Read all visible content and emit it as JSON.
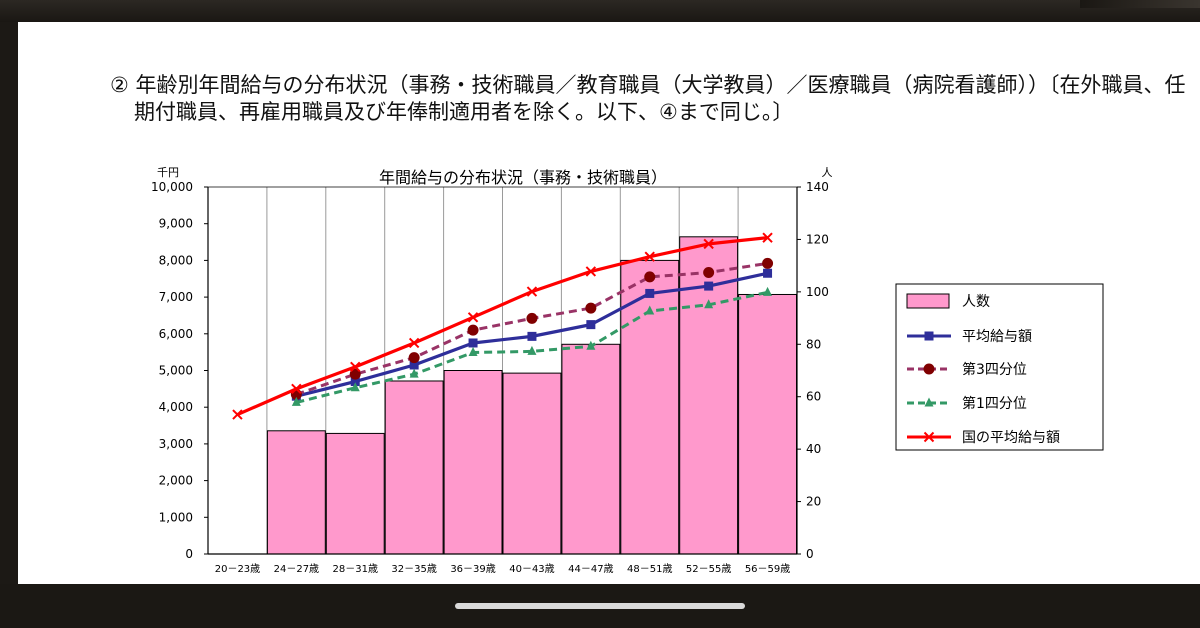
{
  "heading": "② 年齢別年間給与の分布状況（事務・技術職員／教育職員（大学教員）／医療職員（病院看護師））〔在外職員、任期付職員、再雇用職員及び年俸制適用者を除く。以下、④まで同じ。〕",
  "colors": {
    "bar_fill": "#ff99cc",
    "bar_stroke": "#000000",
    "avg_salary": "#2e2e9a",
    "q3": "#993366",
    "q3_marker": "#800000",
    "q1": "#339966",
    "national_avg": "#ff0000"
  },
  "chart_data": {
    "type": "bar+line",
    "title": "年間給与の分布状況（事務・技術職員）",
    "y_left_unit": "千円",
    "y_right_unit": "人",
    "y_left_lim": [
      0,
      10000
    ],
    "y_right_lim": [
      0,
      140
    ],
    "y_left_ticks": [
      "0",
      "1,000",
      "2,000",
      "3,000",
      "4,000",
      "5,000",
      "6,000",
      "7,000",
      "8,000",
      "9,000",
      "10,000"
    ],
    "y_right_ticks": [
      "0",
      "20",
      "40",
      "60",
      "80",
      "100",
      "120",
      "140"
    ],
    "categories": [
      "20－23歳",
      "24－27歳",
      "28－31歳",
      "32－35歳",
      "36－39歳",
      "40－43歳",
      "44－47歳",
      "48－51歳",
      "52－55歳",
      "56－59歳"
    ],
    "grid": "vertical",
    "legend_position": "right",
    "series": [
      {
        "name": "人数",
        "type": "bar",
        "axis": "right",
        "values": [
          null,
          47,
          46,
          66,
          70,
          69,
          80,
          112,
          121,
          99
        ]
      },
      {
        "name": "平均給与額",
        "type": "line",
        "axis": "left",
        "marker": "square",
        "dash": "solid",
        "values": [
          null,
          4300,
          4700,
          5150,
          5750,
          5930,
          6250,
          7100,
          7300,
          7650
        ]
      },
      {
        "name": "第3四分位",
        "type": "line",
        "axis": "left",
        "marker": "circle",
        "dash": "dashed",
        "values": [
          null,
          4350,
          4900,
          5350,
          6100,
          6420,
          6700,
          7550,
          7670,
          7920
        ]
      },
      {
        "name": "第1四分位",
        "type": "line",
        "axis": "left",
        "marker": "triangle",
        "dash": "dashed",
        "values": [
          null,
          4130,
          4530,
          4900,
          5490,
          5520,
          5660,
          6620,
          6790,
          7130
        ]
      },
      {
        "name": "国の平均給与額",
        "type": "line",
        "axis": "left",
        "marker": "x",
        "dash": "solid",
        "values": [
          3800,
          4500,
          5100,
          5750,
          6450,
          7150,
          7700,
          8100,
          8450,
          8620
        ]
      }
    ]
  }
}
